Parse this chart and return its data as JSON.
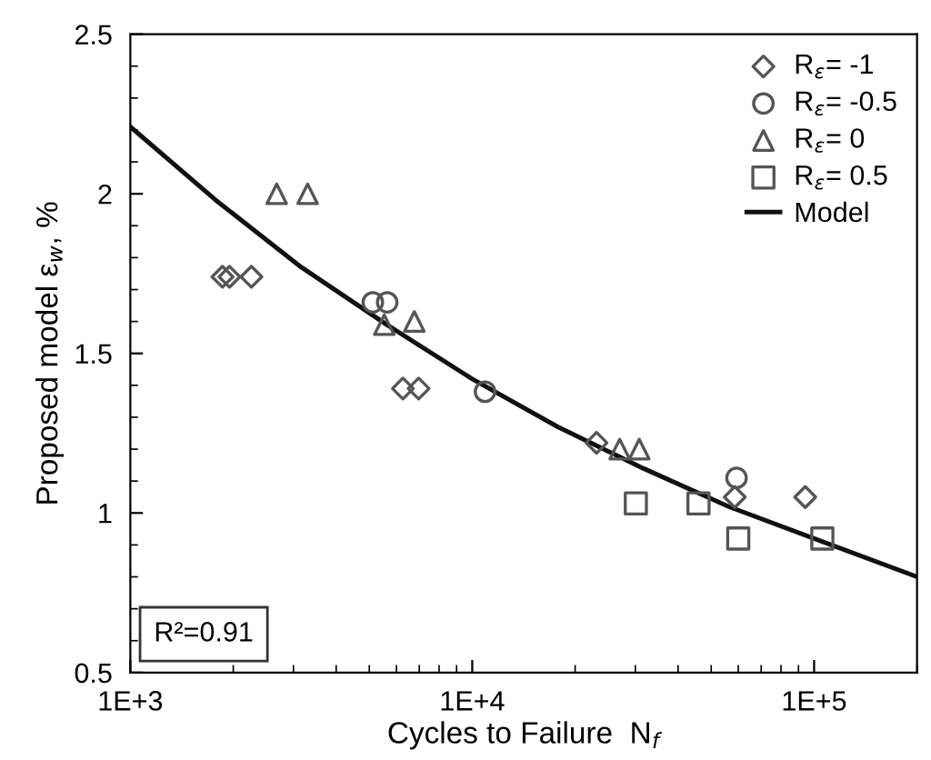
{
  "chart_data": {
    "type": "scatter",
    "xlabel": "Cycles to Failure  N$_{f}$",
    "ylabel": "Proposed model ε$_{w}$, %",
    "log": "x",
    "xlim": [
      1000,
      200000
    ],
    "xticks": [
      {
        "value": 1000,
        "label": "1E+3"
      },
      {
        "value": 10000,
        "label": "1E+4"
      },
      {
        "value": 100000,
        "label": "1E+5"
      }
    ],
    "ylim": [
      0.5,
      2.5
    ],
    "yticks": [
      0.5,
      1,
      1.5,
      2,
      2.5
    ],
    "grid": false,
    "legend": "top right",
    "annotations": [
      "R²=0.91"
    ],
    "series": [
      {
        "name": "R$_{ε}$= -1",
        "marker": "diamond",
        "color": "#555555",
        "x": [
          1860,
          1950,
          2260,
          6270,
          6970,
          23100,
          58600,
          94200
        ],
        "values": [
          1.74,
          1.74,
          1.74,
          1.39,
          1.39,
          1.22,
          1.05,
          1.05
        ]
      },
      {
        "name": "R$_{ε}$= -0.5",
        "marker": "circle",
        "color": "#555555",
        "x": [
          5120,
          5640,
          10900,
          59300
        ],
        "values": [
          1.66,
          1.66,
          1.38,
          1.11
        ]
      },
      {
        "name": "R$_{ε}$= 0",
        "marker": "triangle",
        "color": "#555555",
        "x": [
          2680,
          3300,
          5530,
          6770,
          27000,
          30800
        ],
        "values": [
          2.0,
          2.0,
          1.59,
          1.6,
          1.2,
          1.2
        ]
      },
      {
        "name": "R$_{ε}$= 0.5",
        "marker": "square",
        "color": "#555555",
        "x": [
          30100,
          45900,
          60000,
          105700
        ],
        "values": [
          1.03,
          1.03,
          0.92,
          0.92
        ]
      },
      {
        "name": "Model",
        "type": "line",
        "marker": "none",
        "color": "#111111",
        "x": [
          1000,
          1778,
          3162,
          5623,
          10000,
          17783,
          31623,
          56234,
          100000,
          200000
        ],
        "values": [
          2.21,
          1.98,
          1.77,
          1.59,
          1.42,
          1.27,
          1.14,
          1.02,
          0.92,
          0.8
        ]
      }
    ]
  }
}
